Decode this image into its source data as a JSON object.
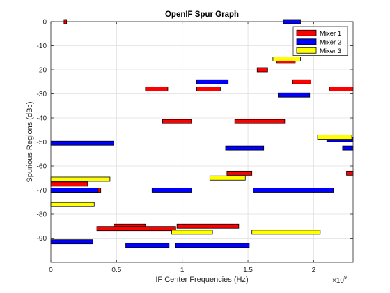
{
  "chart_data": {
    "type": "bar",
    "orientation": "horizontal-interval",
    "title": "OpenIF Spur Graph",
    "xlabel": "IF Center Frequencies (Hz)",
    "ylabel": "Spurious Regions (dBc)",
    "x_exponent_label": "×10",
    "x_exponent_power": "9",
    "xlim": [
      0,
      2.3
    ],
    "ylim": [
      -100,
      0
    ],
    "xticks": [
      0,
      0.5,
      1,
      1.5,
      2
    ],
    "xtick_labels": [
      "0",
      "0.5",
      "1",
      "1.5",
      "2"
    ],
    "yticks": [
      0,
      -10,
      -20,
      -30,
      -40,
      -50,
      -60,
      -70,
      -80,
      -90
    ],
    "ytick_labels": [
      "0",
      "-10",
      "-20",
      "-30",
      "-40",
      "-50",
      "-60",
      "-70",
      "-80",
      "-90"
    ],
    "grid": true,
    "legend_position": "top-right",
    "series": [
      {
        "name": "Mixer 1",
        "color": "#ff0000",
        "intervals": [
          {
            "x0": 0.1,
            "x1": 0.12,
            "y": 0
          },
          {
            "x0": 0.72,
            "x1": 0.89,
            "y": -28
          },
          {
            "x0": 0.85,
            "x1": 1.07,
            "y": -41.5
          },
          {
            "x0": 1.11,
            "x1": 1.29,
            "y": -28
          },
          {
            "x0": 1.4,
            "x1": 1.78,
            "y": -41.5
          },
          {
            "x0": 1.57,
            "x1": 1.65,
            "y": -20
          },
          {
            "x0": 1.72,
            "x1": 1.86,
            "y": -16.5
          },
          {
            "x0": 1.84,
            "x1": 1.98,
            "y": -25
          },
          {
            "x0": 2.12,
            "x1": 2.3,
            "y": -28
          },
          {
            "x0": 1.34,
            "x1": 1.53,
            "y": -63
          },
          {
            "x0": 2.25,
            "x1": 2.3,
            "y": -63
          },
          {
            "x0": 0.0,
            "x1": 0.28,
            "y": -67.5
          },
          {
            "x0": 0.0,
            "x1": 0.38,
            "y": -70
          },
          {
            "x0": 0.48,
            "x1": 0.72,
            "y": -85
          },
          {
            "x0": 0.35,
            "x1": 0.95,
            "y": -86
          },
          {
            "x0": 0.96,
            "x1": 1.43,
            "y": -85
          }
        ]
      },
      {
        "name": "Mixer 2",
        "color": "#0000ff",
        "intervals": [
          {
            "x0": 1.77,
            "x1": 1.9,
            "y": 0
          },
          {
            "x0": 1.11,
            "x1": 1.35,
            "y": -25
          },
          {
            "x0": 1.73,
            "x1": 1.97,
            "y": -30.5
          },
          {
            "x0": 0.0,
            "x1": 0.48,
            "y": -50.5
          },
          {
            "x0": 1.33,
            "x1": 1.62,
            "y": -52.5
          },
          {
            "x0": 2.1,
            "x1": 2.3,
            "y": -49
          },
          {
            "x0": 2.22,
            "x1": 2.3,
            "y": -52.5
          },
          {
            "x0": 0.0,
            "x1": 0.36,
            "y": -70
          },
          {
            "x0": 0.77,
            "x1": 1.07,
            "y": -70
          },
          {
            "x0": 1.54,
            "x1": 2.15,
            "y": -70
          },
          {
            "x0": 0.0,
            "x1": 0.32,
            "y": -91.5
          },
          {
            "x0": 0.57,
            "x1": 0.9,
            "y": -93
          },
          {
            "x0": 0.95,
            "x1": 1.51,
            "y": -93
          }
        ]
      },
      {
        "name": "Mixer 3",
        "color": "#ffff00",
        "intervals": [
          {
            "x0": 1.69,
            "x1": 1.9,
            "y": -15.5
          },
          {
            "x0": 2.03,
            "x1": 2.29,
            "y": -48
          },
          {
            "x0": 0.0,
            "x1": 0.45,
            "y": -65.5
          },
          {
            "x0": 1.21,
            "x1": 1.48,
            "y": -65
          },
          {
            "x0": 0.0,
            "x1": 0.33,
            "y": -76
          },
          {
            "x0": 0.92,
            "x1": 1.23,
            "y": -87.5
          },
          {
            "x0": 1.53,
            "x1": 2.05,
            "y": -87.5
          }
        ]
      }
    ]
  }
}
